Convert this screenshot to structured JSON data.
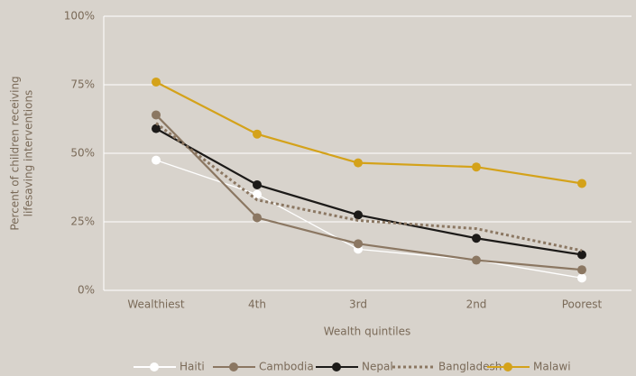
{
  "chart_data": {
    "type": "line",
    "ylabel": [
      "Percent of children receiving",
      "lifesaving interventions"
    ],
    "xlabel": "Wealth quintiles",
    "categories": [
      "Wealthiest",
      "4th",
      "3rd",
      "2nd",
      "Poorest"
    ],
    "ylim": [
      0,
      100
    ],
    "yticks": [
      {
        "value": 0,
        "label": "0%"
      },
      {
        "value": 25,
        "label": "25%"
      },
      {
        "value": 50,
        "label": "50%"
      },
      {
        "value": 75,
        "label": "75%"
      },
      {
        "value": 100,
        "label": "100%"
      }
    ],
    "grid": true,
    "legend": "bottom",
    "series": [
      {
        "name": "Haiti",
        "color": "#ffffff",
        "values": [
          47.5,
          35,
          15,
          11,
          4.5
        ],
        "markers": true,
        "dashed": false
      },
      {
        "name": "Cambodia",
        "color": "#8b7762",
        "values": [
          64,
          26.5,
          17,
          11,
          7.5
        ],
        "markers": true,
        "dashed": false
      },
      {
        "name": "Nepal",
        "color": "#1c1a18",
        "values": [
          59,
          38.5,
          27.5,
          19,
          13
        ],
        "markers": true,
        "dashed": false
      },
      {
        "name": "Bangladesh",
        "color": "#8b7762",
        "values": [
          61,
          33,
          25.5,
          22.5,
          14.5
        ],
        "markers": false,
        "dashed": true
      },
      {
        "name": "Malawi",
        "color": "#d4a21a",
        "values": [
          76,
          57,
          46.5,
          45,
          39
        ],
        "markers": true,
        "dashed": false
      }
    ]
  }
}
